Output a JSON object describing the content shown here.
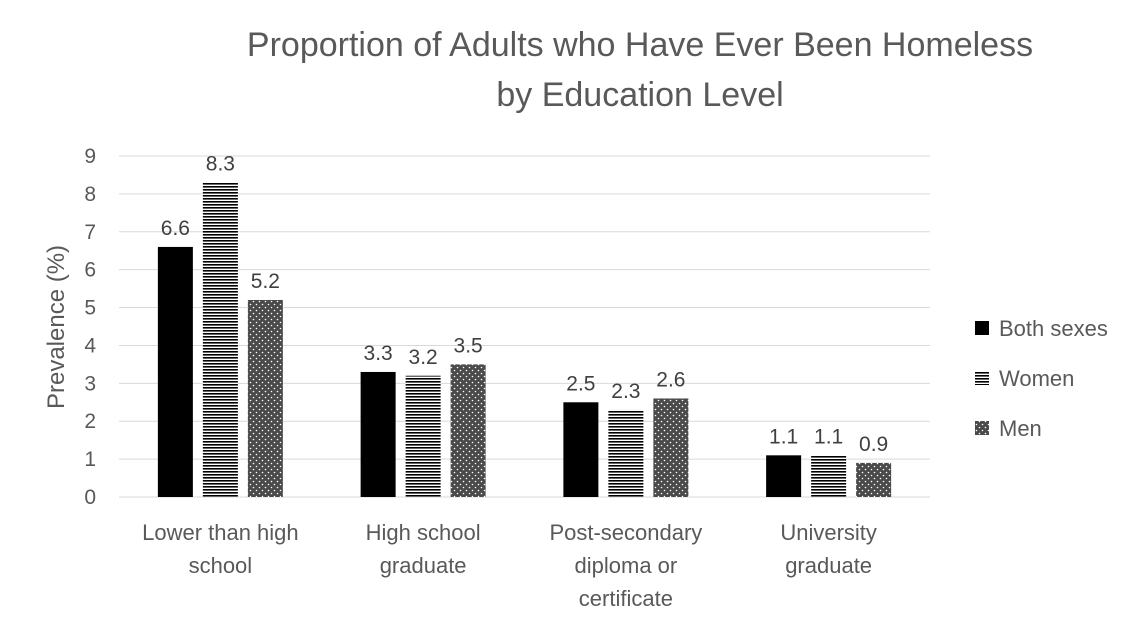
{
  "chart_data": {
    "type": "bar",
    "title": [
      "Proportion of Adults who Have Ever Been Homeless",
      "by Education Level"
    ],
    "ylabel": "Prevalence (%)",
    "xlabel": "",
    "ylim": [
      0,
      9
    ],
    "yticks": [
      0,
      1,
      2,
      3,
      4,
      5,
      6,
      7,
      8,
      9
    ],
    "grid": true,
    "legend_position": "right",
    "categories": [
      [
        "Lower than high",
        "school"
      ],
      [
        "High school",
        "graduate"
      ],
      [
        "Post-secondary",
        "diploma or",
        "certificate"
      ],
      [
        "University",
        "graduate"
      ]
    ],
    "series": [
      {
        "name": "Both sexes",
        "values": [
          6.6,
          3.3,
          2.5,
          1.1
        ],
        "labels": [
          "6.6",
          "3.3",
          "2.5",
          "1.1"
        ],
        "pattern": "solid-black"
      },
      {
        "name": "Women",
        "values": [
          8.3,
          3.2,
          2.3,
          1.1
        ],
        "labels": [
          "8.3",
          "3.2",
          "2.3",
          "1.1"
        ],
        "pattern": "horizontal-stripes"
      },
      {
        "name": "Men",
        "values": [
          5.2,
          3.5,
          2.6,
          0.9
        ],
        "labels": [
          "5.2",
          "3.5",
          "2.6",
          "0.9"
        ],
        "pattern": "dotted-dark"
      }
    ],
    "colors": {
      "bar_fill": "#000000",
      "gridline": "#d9d9d9",
      "text": "#595959"
    }
  }
}
